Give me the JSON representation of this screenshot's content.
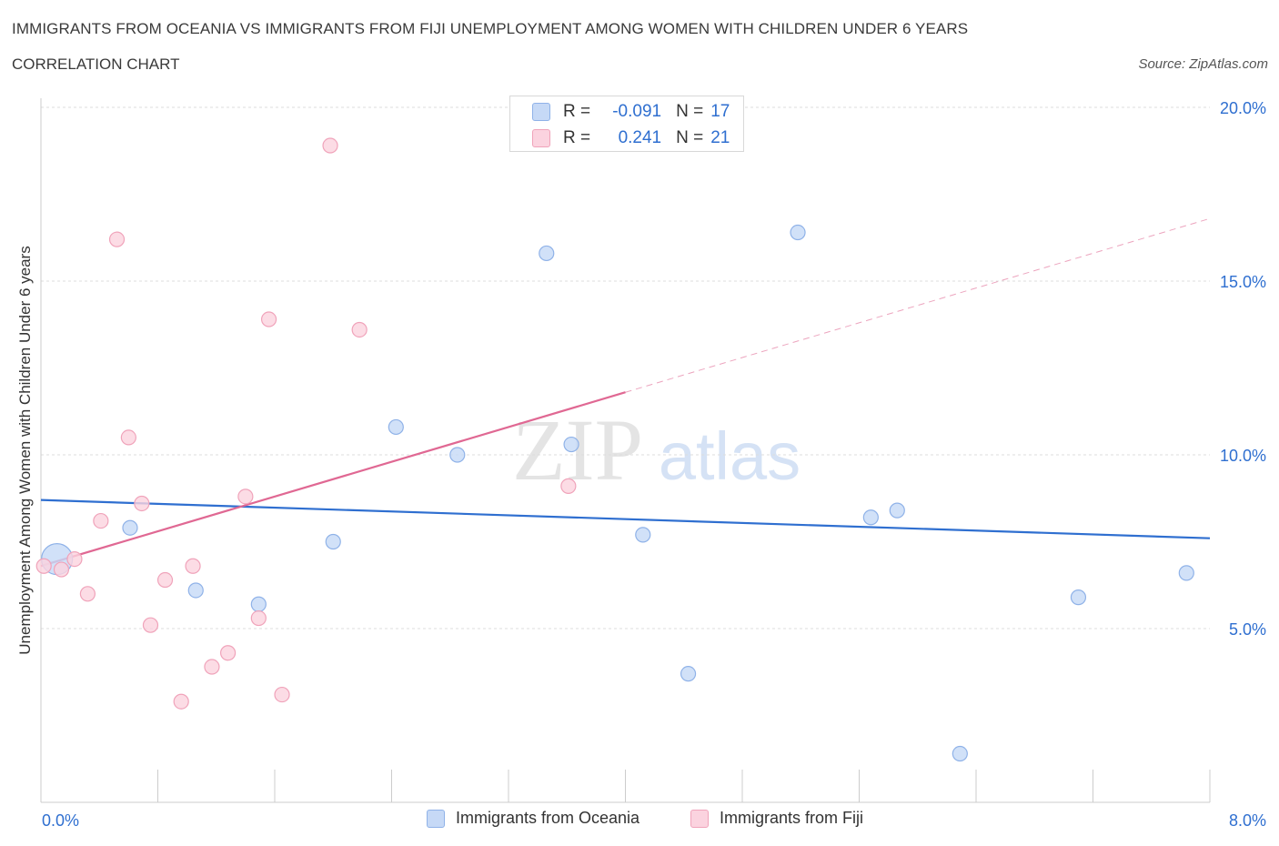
{
  "header": {
    "title": "IMMIGRANTS FROM OCEANIA VS IMMIGRANTS FROM FIJI UNEMPLOYMENT AMONG WOMEN WITH CHILDREN UNDER 6 YEARS",
    "subtitle": "CORRELATION CHART",
    "source": "Source: ZipAtlas.com"
  },
  "watermark": {
    "zip": "ZIP",
    "atlas": "atlas"
  },
  "colors": {
    "oceania_fill": "#c6d9f6",
    "oceania_stroke": "#8fb2e8",
    "oceania_line": "#2f6fd0",
    "fiji_fill": "#fbd3df",
    "fiji_stroke": "#f0a3ba",
    "fiji_line": "#e06893",
    "accent_text": "#2f6fd0"
  },
  "stats": [
    {
      "r_label": "R =",
      "r_value": "-0.091",
      "n_label": "N =",
      "n_value": "17",
      "series": "oceania"
    },
    {
      "r_label": "R =",
      "r_value": "0.241",
      "n_label": "N =",
      "n_value": "21",
      "series": "fiji"
    }
  ],
  "legend": [
    {
      "label": "Immigrants from Oceania",
      "series": "oceania"
    },
    {
      "label": "Immigrants from Fiji",
      "series": "fiji"
    }
  ],
  "chart_data": {
    "type": "scatter",
    "title": "IMMIGRANTS FROM OCEANIA VS IMMIGRANTS FROM FIJI UNEMPLOYMENT AMONG WOMEN WITH CHILDREN UNDER 6 YEARS",
    "subtitle": "CORRELATION CHART",
    "xlabel": "",
    "ylabel": "Unemployment Among Women with Children Under 6 years",
    "xlim": [
      0,
      8
    ],
    "ylim": [
      0,
      20
    ],
    "x_tick_labels": [
      "0.0%",
      "8.0%"
    ],
    "y_ticks": [
      5,
      10,
      15,
      20
    ],
    "y_tick_labels": [
      "5.0%",
      "10.0%",
      "15.0%",
      "20.0%"
    ],
    "grid": true,
    "legend_position": "bottom",
    "series": [
      {
        "name": "Immigrants from Oceania",
        "key": "oceania",
        "points": [
          {
            "x": 0.11,
            "y": 7.0,
            "big": true
          },
          {
            "x": 0.61,
            "y": 7.9
          },
          {
            "x": 1.06,
            "y": 6.1
          },
          {
            "x": 1.49,
            "y": 5.7
          },
          {
            "x": 2.0,
            "y": 7.5
          },
          {
            "x": 2.43,
            "y": 10.8
          },
          {
            "x": 2.85,
            "y": 10.0
          },
          {
            "x": 3.46,
            "y": 15.8
          },
          {
            "x": 3.63,
            "y": 10.3
          },
          {
            "x": 4.12,
            "y": 7.7
          },
          {
            "x": 4.43,
            "y": 3.7
          },
          {
            "x": 5.18,
            "y": 16.4
          },
          {
            "x": 5.68,
            "y": 8.2
          },
          {
            "x": 5.86,
            "y": 8.4
          },
          {
            "x": 6.29,
            "y": 1.4
          },
          {
            "x": 7.1,
            "y": 5.9
          },
          {
            "x": 7.84,
            "y": 6.6
          }
        ],
        "trend": {
          "x0": 0.0,
          "y0": 8.7,
          "x1": 8.0,
          "y1": 7.6
        }
      },
      {
        "name": "Immigrants from Fiji",
        "key": "fiji",
        "points": [
          {
            "x": 0.02,
            "y": 6.8
          },
          {
            "x": 0.14,
            "y": 6.7
          },
          {
            "x": 0.23,
            "y": 7.0
          },
          {
            "x": 0.32,
            "y": 6.0
          },
          {
            "x": 0.41,
            "y": 8.1
          },
          {
            "x": 0.52,
            "y": 16.2
          },
          {
            "x": 0.6,
            "y": 10.5
          },
          {
            "x": 0.69,
            "y": 8.6
          },
          {
            "x": 0.75,
            "y": 5.1
          },
          {
            "x": 0.85,
            "y": 6.4
          },
          {
            "x": 0.96,
            "y": 2.9
          },
          {
            "x": 1.04,
            "y": 6.8
          },
          {
            "x": 1.17,
            "y": 3.9
          },
          {
            "x": 1.28,
            "y": 4.3
          },
          {
            "x": 1.4,
            "y": 8.8
          },
          {
            "x": 1.49,
            "y": 5.3
          },
          {
            "x": 1.56,
            "y": 13.9
          },
          {
            "x": 1.65,
            "y": 3.1
          },
          {
            "x": 1.98,
            "y": 18.9
          },
          {
            "x": 2.18,
            "y": 13.6
          },
          {
            "x": 3.61,
            "y": 9.1
          }
        ],
        "trend": {
          "x0": 0.0,
          "y0": 6.8,
          "x1": 4.0,
          "y1": 11.8
        },
        "trend_extension": {
          "x0": 4.0,
          "y0": 11.8,
          "x1": 8.0,
          "y1": 16.8
        }
      }
    ]
  }
}
